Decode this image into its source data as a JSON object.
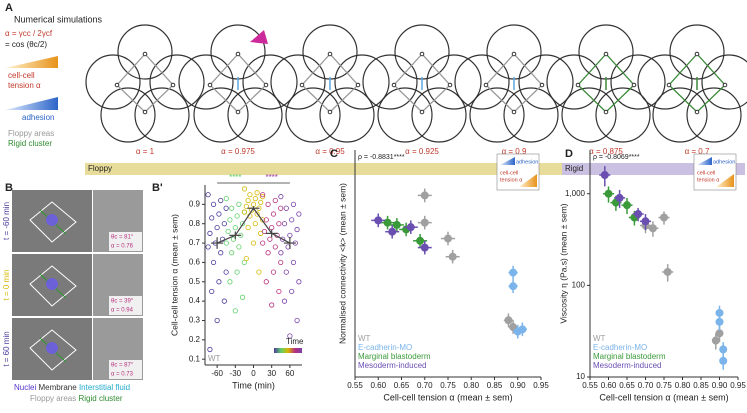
{
  "panel_a": {
    "letter": "A",
    "title": "Numerical simulations",
    "formula": "α = γcc / 2γcf",
    "formula2": "= cos (θc/2)",
    "tension_label": [
      "cell-cell",
      "tension α"
    ],
    "adhesion_label": "adhesion",
    "floppy_label": "Floppy areas",
    "rigid_label": "Rigid cluster",
    "alphas": [
      "α = 1",
      "α = 0.975",
      "α = 0.95",
      "α = 0.925",
      "α = 0.9",
      "α = 0.875",
      "α = 0.7"
    ],
    "bar_floppy": "Floppy",
    "bar_rigid": "Rigid"
  },
  "panel_b": {
    "letter": "B",
    "times": [
      "t = -60 min",
      "t = 0 min",
      "t = 60 min"
    ],
    "insets": [
      [
        "θc = 81°",
        "α = 0.76"
      ],
      [
        "θc = 39°",
        "α = 0.94"
      ],
      [
        "θc = 87°",
        "α = 0.73"
      ]
    ],
    "legend": [
      "Nuclei",
      "Membrane",
      "Interstitial fluid"
    ],
    "legend2": [
      "Floppy areas",
      "Rigid cluster"
    ]
  },
  "chart_data": [
    {
      "type": "beeswarm",
      "letter": "B'",
      "xlabel": "Time (min)",
      "ylabel": "Cell-cell tension α (mean ± sem)",
      "note": "WT",
      "legend_title": "Time",
      "xlim": [
        -80,
        80
      ],
      "xticks": [
        -60,
        -30,
        0,
        30,
        60
      ],
      "ylim": [
        0.07,
        1.0
      ],
      "yticks": [
        0.1,
        0.2,
        0.3,
        0.4,
        0.5,
        0.6,
        0.7,
        0.8,
        0.9
      ],
      "groups": [
        {
          "x": -60,
          "color": "#4b3a9c",
          "mean": 0.7,
          "sem": 0.03,
          "values": [
            0.95,
            0.92,
            0.9,
            0.88,
            0.85,
            0.83,
            0.8,
            0.78,
            0.75,
            0.72,
            0.7,
            0.68,
            0.65,
            0.6,
            0.55,
            0.5,
            0.45,
            0.4,
            0.3,
            0.15
          ]
        },
        {
          "x": -30,
          "color": "#5fcf6a",
          "mean": 0.74,
          "sem": 0.02,
          "values": [
            0.93,
            0.9,
            0.88,
            0.86,
            0.84,
            0.82,
            0.8,
            0.78,
            0.76,
            0.74,
            0.72,
            0.7,
            0.68,
            0.65,
            0.6,
            0.55,
            0.5,
            0.42,
            0.35
          ]
        },
        {
          "x": 0,
          "color": "#d6b800",
          "mean": 0.88,
          "sem": 0.01,
          "values": [
            0.98,
            0.96,
            0.95,
            0.94,
            0.93,
            0.92,
            0.91,
            0.9,
            0.89,
            0.88,
            0.87,
            0.86,
            0.85,
            0.84,
            0.82,
            0.8,
            0.78,
            0.75,
            0.7,
            0.62,
            0.55
          ]
        },
        {
          "x": 30,
          "color": "#b8307e",
          "mean": 0.75,
          "sem": 0.02,
          "values": [
            0.95,
            0.92,
            0.9,
            0.88,
            0.85,
            0.82,
            0.8,
            0.78,
            0.76,
            0.74,
            0.72,
            0.7,
            0.68,
            0.65,
            0.6,
            0.55,
            0.5,
            0.45,
            0.38
          ]
        },
        {
          "x": 60,
          "color": "#7a3fa8",
          "mean": 0.7,
          "sem": 0.03,
          "values": [
            0.94,
            0.9,
            0.88,
            0.85,
            0.82,
            0.8,
            0.77,
            0.74,
            0.72,
            0.7,
            0.68,
            0.65,
            0.6,
            0.55,
            0.5,
            0.45,
            0.4,
            0.3,
            0.22
          ]
        }
      ],
      "annotations": [
        {
          "text": "****",
          "x": -30,
          "color": "#5fcf6a"
        },
        {
          "text": "****",
          "x": 30,
          "color": "#9a3fb0"
        }
      ]
    },
    {
      "type": "scatter",
      "letter": "C",
      "rho": "ρ = -0.8831****",
      "xlabel": "Cell-cell tension α (mean ± sem)",
      "ylabel": "Normalised connectivity <k> (mean ± sem)",
      "key": [
        "adhesion",
        "cell-cell",
        "tension α"
      ],
      "xlim": [
        0.55,
        0.95
      ],
      "xticks": [
        0.55,
        {
          "value": 0.6,
          "label": "0.60"
        },
        0.65,
        {
          "value": 0.7,
          "label": "0.70"
        },
        0.75,
        {
          "value": 0.8,
          "label": "0.80"
        },
        0.85,
        {
          "value": 0.9,
          "label": "0.90"
        },
        0.95
      ],
      "ylim": [
        0,
        1
      ],
      "log": false,
      "series": [
        {
          "name": "WT",
          "color": "#a0a0a0",
          "x": [
            0.7,
            0.7,
            0.75,
            0.76,
            0.88,
            0.89
          ],
          "y": [
            0.8,
            0.68,
            0.61,
            0.53,
            0.25,
            0.22
          ],
          "xerr": [
            0.015,
            0.015,
            0.015,
            0.015,
            0.01,
            0.01
          ],
          "yerr": [
            0.03,
            0.03,
            0.03,
            0.03,
            0.03,
            0.03
          ]
        },
        {
          "name": "E-cadherin-MO",
          "color": "#7ab4ea",
          "x": [
            0.89,
            0.89,
            0.9,
            0.91
          ],
          "y": [
            0.46,
            0.4,
            0.2,
            0.21
          ],
          "xerr": [
            0.01,
            0.01,
            0.01,
            0.01
          ],
          "yerr": [
            0.03,
            0.03,
            0.03,
            0.03
          ]
        },
        {
          "name": "Marginal blastoderm",
          "color": "#3a9a3a",
          "x": [
            0.62,
            0.64,
            0.66,
            0.69
          ],
          "y": [
            0.68,
            0.67,
            0.65,
            0.6
          ],
          "xerr": [
            0.015,
            0.015,
            0.015,
            0.015
          ],
          "yerr": [
            0.03,
            0.03,
            0.03,
            0.03
          ]
        },
        {
          "name": "Mesoderm-induced",
          "color": "#6a4fb0",
          "x": [
            0.6,
            0.63,
            0.67,
            0.7
          ],
          "y": [
            0.69,
            0.64,
            0.66,
            0.57
          ],
          "xerr": [
            0.015,
            0.015,
            0.015,
            0.015
          ],
          "yerr": [
            0.03,
            0.03,
            0.03,
            0.03
          ]
        }
      ]
    },
    {
      "type": "scatter",
      "letter": "D",
      "rho": "ρ = -0.8069****",
      "xlabel": "Cell-cell tension α (mean ± sem)",
      "ylabel": "Viscosity η (Pa.s) (mean ± sem)",
      "key": [
        "adhesion",
        "cell-cell",
        "tension α"
      ],
      "xlim": [
        0.55,
        0.95
      ],
      "xticks": [
        0.55,
        {
          "value": 0.6,
          "label": "0.60"
        },
        0.65,
        {
          "value": 0.7,
          "label": "0.70"
        },
        0.75,
        {
          "value": 0.8,
          "label": "0.80"
        },
        0.85,
        {
          "value": 0.9,
          "label": "0.90"
        },
        0.95
      ],
      "ylim": [
        10,
        3000
      ],
      "log": true,
      "yticks": [
        10,
        100,
        {
          "value": 1000,
          "label": "1,000"
        }
      ],
      "series": [
        {
          "name": "WT",
          "color": "#a0a0a0",
          "x": [
            0.7,
            0.72,
            0.75,
            0.76,
            0.89,
            0.9
          ],
          "y": [
            450,
            420,
            550,
            140,
            25,
            30
          ],
          "xerr": [
            0.015,
            0.015,
            0.015,
            0.015,
            0.01,
            0.01
          ],
          "yerr": [
            80,
            80,
            90,
            30,
            5,
            6
          ]
        },
        {
          "name": "E-cadherin-MO",
          "color": "#7ab4ea",
          "x": [
            0.9,
            0.9,
            0.91,
            0.91
          ],
          "y": [
            50,
            40,
            20,
            15
          ],
          "xerr": [
            0.01,
            0.01,
            0.01,
            0.01
          ],
          "yerr": [
            10,
            8,
            4,
            3
          ]
        },
        {
          "name": "Marginal blastoderm",
          "color": "#3a9a3a",
          "x": [
            0.6,
            0.62,
            0.65,
            0.67
          ],
          "y": [
            1000,
            800,
            750,
            550
          ],
          "xerr": [
            0.015,
            0.015,
            0.015,
            0.015
          ],
          "yerr": [
            200,
            150,
            150,
            100
          ]
        },
        {
          "name": "Mesoderm-induced",
          "color": "#6a4fb0",
          "x": [
            0.59,
            0.63,
            0.68,
            0.7
          ],
          "y": [
            1600,
            900,
            600,
            500
          ],
          "xerr": [
            0.015,
            0.015,
            0.015,
            0.015
          ],
          "yerr": [
            400,
            200,
            100,
            100
          ]
        }
      ]
    }
  ]
}
